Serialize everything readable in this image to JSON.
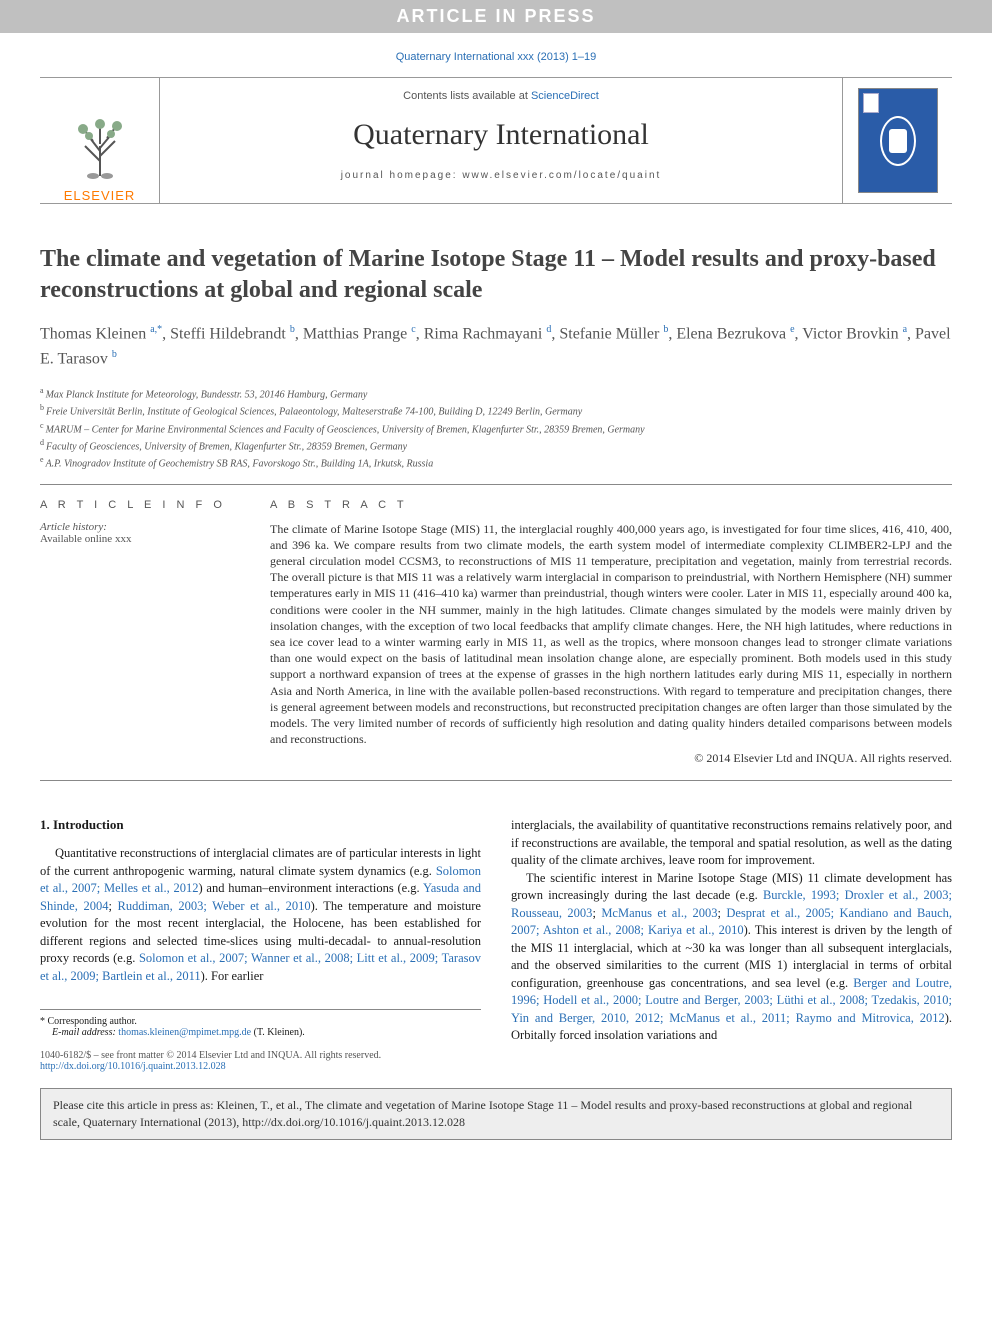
{
  "banner": "ARTICLE IN PRESS",
  "citation_line": "Quaternary International xxx (2013) 1–19",
  "header": {
    "contents_prefix": "Contents lists available at ",
    "contents_link": "ScienceDirect",
    "journal_name": "Quaternary International",
    "homepage_prefix": "journal homepage: ",
    "homepage": "www.elsevier.com/locate/quaint",
    "elsevier_label": "ELSEVIER"
  },
  "colors": {
    "link": "#2a6fb5",
    "elsevier_orange": "#ff7a00",
    "banner_bg": "#c0c0c0",
    "cover_bg": "#2a5ca8"
  },
  "title": "The climate and vegetation of Marine Isotope Stage 11 – Model results and proxy-based reconstructions at global and regional scale",
  "authors_html": "Thomas Kleinen <span class='sup'>a,*</span>, Steffi Hildebrandt <span class='sup'>b</span>, Matthias Prange <span class='sup'>c</span>, Rima Rachmayani <span class='sup'>d</span>, Stefanie Müller <span class='sup'>b</span>, Elena Bezrukova <span class='sup'>e</span>, Victor Brovkin <span class='sup'>a</span>, Pavel E. Tarasov <span class='sup'>b</span>",
  "affiliations": [
    {
      "sup": "a",
      "text": "Max Planck Institute for Meteorology, Bundesstr. 53, 20146 Hamburg, Germany"
    },
    {
      "sup": "b",
      "text": "Freie Universität Berlin, Institute of Geological Sciences, Palaeontology, Malteserstraße 74-100, Building D, 12249 Berlin, Germany"
    },
    {
      "sup": "c",
      "text": "MARUM – Center for Marine Environmental Sciences and Faculty of Geosciences, University of Bremen, Klagenfurter Str., 28359 Bremen, Germany"
    },
    {
      "sup": "d",
      "text": "Faculty of Geosciences, University of Bremen, Klagenfurter Str., 28359 Bremen, Germany"
    },
    {
      "sup": "e",
      "text": "A.P. Vinogradov Institute of Geochemistry SB RAS, Favorskogo Str., Building 1A, Irkutsk, Russia"
    }
  ],
  "info": {
    "label": "A R T I C L E   I N F O",
    "history_label": "Article history:",
    "available": "Available online xxx"
  },
  "abstract": {
    "label": "A B S T R A C T",
    "text": "The climate of Marine Isotope Stage (MIS) 11, the interglacial roughly 400,000 years ago, is investigated for four time slices, 416, 410, 400, and 396 ka. We compare results from two climate models, the earth system model of intermediate complexity CLIMBER2-LPJ and the general circulation model CCSM3, to reconstructions of MIS 11 temperature, precipitation and vegetation, mainly from terrestrial records. The overall picture is that MIS 11 was a relatively warm interglacial in comparison to preindustrial, with Northern Hemisphere (NH) summer temperatures early in MIS 11 (416–410 ka) warmer than preindustrial, though winters were cooler. Later in MIS 11, especially around 400 ka, conditions were cooler in the NH summer, mainly in the high latitudes. Climate changes simulated by the models were mainly driven by insolation changes, with the exception of two local feedbacks that amplify climate changes. Here, the NH high latitudes, where reductions in sea ice cover lead to a winter warming early in MIS 11, as well as the tropics, where monsoon changes lead to stronger climate variations than one would expect on the basis of latitudinal mean insolation change alone, are especially prominent. Both models used in this study support a northward expansion of trees at the expense of grasses in the high northern latitudes early during MIS 11, especially in northern Asia and North America, in line with the available pollen-based reconstructions. With regard to temperature and precipitation changes, there is general agreement between models and reconstructions, but reconstructed precipitation changes are often larger than those simulated by the models. The very limited number of records of sufficiently high resolution and dating quality hinders detailed comparisons between models and reconstructions.",
    "copyright": "© 2014 Elsevier Ltd and INQUA. All rights reserved."
  },
  "body": {
    "heading": "1. Introduction",
    "col1": "Quantitative reconstructions of interglacial climates are of particular interests in light of the current anthropogenic warming, natural climate system dynamics (e.g. <a>Solomon et al., 2007; Melles et al., 2012</a>) and human–environment interactions (e.g. <a>Yasuda and Shinde, 2004</a>; <a>Ruddiman, 2003; Weber et al., 2010</a>). The temperature and moisture evolution for the most recent interglacial, the Holocene, has been established for different regions and selected time-slices using multi-decadal- to annual-resolution proxy records (e.g. <a>Solomon et al., 2007; Wanner et al., 2008; Litt et al., 2009; Tarasov et al., 2009; Bartlein et al., 2011</a>). For earlier",
    "col2_p1": "interglacials, the availability of quantitative reconstructions remains relatively poor, and if reconstructions are available, the temporal and spatial resolution, as well as the dating quality of the climate archives, leave room for improvement.",
    "col2_p2": "The scientific interest in Marine Isotope Stage (MIS) 11 climate development has grown increasingly during the last decade (e.g. <a>Burckle, 1993; Droxler et al., 2003; Rousseau, 2003</a>; <a>McManus et al., 2003</a>; <a>Desprat et al., 2005; Kandiano and Bauch, 2007; Ashton et al., 2008; Kariya et al., 2010</a>). This interest is driven by the length of the MIS 11 interglacial, which at ~30 ka was longer than all subsequent interglacials, and the observed similarities to the current (MIS 1) interglacial in terms of orbital configuration, greenhouse gas concentrations, and sea level (e.g. <a>Berger and Loutre, 1996; Hodell et al., 2000; Loutre and Berger, 2003; Lüthi et al., 2008; Tzedakis, 2010; Yin and Berger, 2010, 2012; McManus et al., 2011; Raymo and Mitrovica, 2012</a>). Orbitally forced insolation variations and"
  },
  "footnote": {
    "corr": "* Corresponding author.",
    "email_label": "E-mail address: ",
    "email": "thomas.kleinen@mpimet.mpg.de",
    "email_suffix": " (T. Kleinen)."
  },
  "doi": {
    "line1": "1040-6182/$ – see front matter © 2014 Elsevier Ltd and INQUA. All rights reserved.",
    "link": "http://dx.doi.org/10.1016/j.quaint.2013.12.028"
  },
  "citebox": "Please cite this article in press as: Kleinen, T., et al., The climate and vegetation of Marine Isotope Stage 11 – Model results and proxy-based reconstructions at global and regional scale, Quaternary International (2013), http://dx.doi.org/10.1016/j.quaint.2013.12.028"
}
